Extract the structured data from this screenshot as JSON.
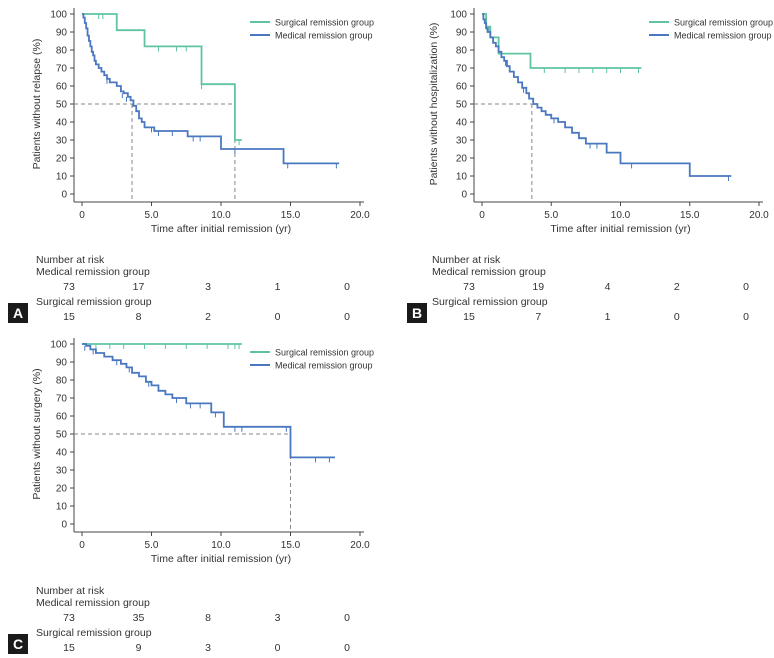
{
  "panels": [
    {
      "id": "A",
      "ylabel": "Patients without relapse (%)",
      "xlabel": "Time after initial remission (yr)",
      "risk_title": "Number at risk",
      "risk_rows": [
        {
          "name": "Medical remission group",
          "values": [
            "73",
            "17",
            "3",
            "1",
            "0"
          ]
        },
        {
          "name": "Surgical remission group",
          "values": [
            "15",
            "8",
            "2",
            "0",
            "0"
          ]
        }
      ]
    },
    {
      "id": "B",
      "ylabel": "Patients without hospitalization (%)",
      "xlabel": "Time after initial remission (yr)",
      "risk_title": "Number at risk",
      "risk_rows": [
        {
          "name": "Medical remission group",
          "values": [
            "73",
            "19",
            "4",
            "2",
            "0"
          ]
        },
        {
          "name": "Surgical remission group",
          "values": [
            "15",
            "7",
            "1",
            "0",
            "0"
          ]
        }
      ]
    },
    {
      "id": "C",
      "ylabel": "Patients without surgery (%)",
      "xlabel": "Time after initial remission (yr)",
      "risk_title": "Number at risk",
      "risk_rows": [
        {
          "name": "Medical remission group",
          "values": [
            "73",
            "35",
            "8",
            "3",
            "0"
          ]
        },
        {
          "name": "Surgical remission group",
          "values": [
            "15",
            "9",
            "3",
            "0",
            "0"
          ]
        }
      ]
    }
  ],
  "legend": {
    "surgical": "Surgical remission group",
    "medical": "Medical remission group"
  },
  "colors": {
    "surgical": "#5fc4a2",
    "medical": "#4a78c0",
    "reference": "#888888",
    "axis": "#444444"
  },
  "chart_data": [
    {
      "type": "line",
      "title": "",
      "xlabel": "Time after initial remission (yr)",
      "ylabel": "Patients without relapse (%)",
      "xlim": [
        0,
        20
      ],
      "ylim": [
        0,
        100
      ],
      "xticks": [
        "0",
        "5.0",
        "10.0",
        "15.0",
        "20.0"
      ],
      "yticks": [
        "0",
        "10",
        "20",
        "30",
        "40",
        "50",
        "60",
        "70",
        "80",
        "90",
        "100"
      ],
      "series": [
        {
          "name": "Surgical remission group",
          "color": "#5fc4a2",
          "steps": [
            [
              0,
              100
            ],
            [
              2.5,
              91
            ],
            [
              4.5,
              82
            ],
            [
              8.6,
              61
            ],
            [
              11.0,
              30
            ],
            [
              11.5,
              30
            ]
          ],
          "censor": [
            [
              1.2,
              100
            ],
            [
              1.5,
              100
            ],
            [
              5.5,
              82
            ],
            [
              6.8,
              82
            ],
            [
              7.5,
              82
            ],
            [
              8.6,
              61
            ],
            [
              11.3,
              30
            ]
          ]
        },
        {
          "name": "Medical remission group",
          "color": "#4a78c0",
          "steps": [
            [
              0,
              100
            ],
            [
              0.1,
              98
            ],
            [
              0.2,
              95
            ],
            [
              0.3,
              92
            ],
            [
              0.4,
              88
            ],
            [
              0.5,
              85
            ],
            [
              0.6,
              82
            ],
            [
              0.7,
              79
            ],
            [
              0.8,
              77
            ],
            [
              0.9,
              74
            ],
            [
              1.0,
              72
            ],
            [
              1.2,
              70
            ],
            [
              1.4,
              68
            ],
            [
              1.6,
              66
            ],
            [
              1.8,
              64
            ],
            [
              2.0,
              62
            ],
            [
              2.5,
              60
            ],
            [
              2.8,
              57
            ],
            [
              3.0,
              56
            ],
            [
              3.3,
              54
            ],
            [
              3.5,
              52
            ],
            [
              3.7,
              49
            ],
            [
              3.9,
              46
            ],
            [
              4.1,
              42
            ],
            [
              4.3,
              40
            ],
            [
              4.5,
              37
            ],
            [
              5.2,
              35
            ],
            [
              7.6,
              32
            ],
            [
              10.0,
              25
            ],
            [
              14.5,
              17
            ],
            [
              18.5,
              17
            ]
          ],
          "censor": [
            [
              1.8,
              64
            ],
            [
              2.9,
              56
            ],
            [
              3.2,
              54
            ],
            [
              5.0,
              37
            ],
            [
              5.5,
              35
            ],
            [
              6.5,
              35
            ],
            [
              8.0,
              32
            ],
            [
              8.5,
              32
            ],
            [
              11.0,
              25
            ],
            [
              14.8,
              17
            ],
            [
              18.3,
              17
            ]
          ]
        }
      ],
      "reference": {
        "y": 50,
        "x": [
          3.6,
          11.0
        ]
      },
      "legend_position": "top-right"
    },
    {
      "type": "line",
      "title": "",
      "xlabel": "Time after initial remission (yr)",
      "ylabel": "Patients without hospitalization (%)",
      "xlim": [
        0,
        20
      ],
      "ylim": [
        0,
        100
      ],
      "xticks": [
        "0",
        "5.0",
        "10.0",
        "15.0",
        "20.0"
      ],
      "yticks": [
        "0",
        "10",
        "20",
        "30",
        "40",
        "50",
        "60",
        "70",
        "80",
        "90",
        "100"
      ],
      "series": [
        {
          "name": "Surgical remission group",
          "color": "#5fc4a2",
          "steps": [
            [
              0,
              100
            ],
            [
              0.3,
              93
            ],
            [
              0.6,
              87
            ],
            [
              1.2,
              78
            ],
            [
              3.5,
              70
            ],
            [
              11.5,
              70
            ]
          ],
          "censor": [
            [
              0.5,
              93
            ],
            [
              4.5,
              70
            ],
            [
              6.0,
              70
            ],
            [
              7.0,
              70
            ],
            [
              8.0,
              70
            ],
            [
              9.0,
              70
            ],
            [
              10.0,
              70
            ],
            [
              11.3,
              70
            ]
          ]
        },
        {
          "name": "Medical remission group",
          "color": "#4a78c0",
          "steps": [
            [
              0,
              100
            ],
            [
              0.1,
              97
            ],
            [
              0.2,
              95
            ],
            [
              0.3,
              92
            ],
            [
              0.4,
              90
            ],
            [
              0.6,
              87
            ],
            [
              0.8,
              84
            ],
            [
              1.0,
              82
            ],
            [
              1.2,
              79
            ],
            [
              1.4,
              76
            ],
            [
              1.6,
              74
            ],
            [
              1.8,
              71
            ],
            [
              2.0,
              68
            ],
            [
              2.3,
              65
            ],
            [
              2.6,
              62
            ],
            [
              2.9,
              59
            ],
            [
              3.2,
              56
            ],
            [
              3.4,
              53
            ],
            [
              3.7,
              50
            ],
            [
              4.0,
              48
            ],
            [
              4.3,
              46
            ],
            [
              4.6,
              44
            ],
            [
              5.0,
              42
            ],
            [
              5.5,
              40
            ],
            [
              6.0,
              37
            ],
            [
              6.5,
              34
            ],
            [
              7.0,
              31
            ],
            [
              7.5,
              28
            ],
            [
              9.0,
              23
            ],
            [
              10.0,
              17
            ],
            [
              15.0,
              10
            ],
            [
              18.0,
              10
            ]
          ],
          "censor": [
            [
              1.7,
              74
            ],
            [
              3.0,
              59
            ],
            [
              5.2,
              42
            ],
            [
              7.8,
              28
            ],
            [
              8.3,
              28
            ],
            [
              10.8,
              17
            ],
            [
              17.8,
              10
            ]
          ]
        }
      ],
      "reference": {
        "y": 50,
        "x": [
          3.6
        ]
      },
      "legend_position": "top-right"
    },
    {
      "type": "line",
      "title": "",
      "xlabel": "Time after initial remission (yr)",
      "ylabel": "Patients without surgery (%)",
      "xlim": [
        0,
        20
      ],
      "ylim": [
        0,
        100
      ],
      "xticks": [
        "0",
        "5.0",
        "10.0",
        "15.0",
        "20.0"
      ],
      "yticks": [
        "0",
        "10",
        "20",
        "30",
        "40",
        "50",
        "60",
        "70",
        "80",
        "90",
        "100"
      ],
      "series": [
        {
          "name": "Surgical remission group",
          "color": "#5fc4a2",
          "steps": [
            [
              0,
              100
            ],
            [
              11.5,
              100
            ]
          ],
          "censor": [
            [
              0.6,
              100
            ],
            [
              1.0,
              100
            ],
            [
              2.0,
              100
            ],
            [
              3.0,
              100
            ],
            [
              4.5,
              100
            ],
            [
              6.0,
              100
            ],
            [
              7.5,
              100
            ],
            [
              9.0,
              100
            ],
            [
              10.5,
              100
            ],
            [
              11.0,
              100
            ],
            [
              11.3,
              100
            ]
          ]
        },
        {
          "name": "Medical remission group",
          "color": "#4a78c0",
          "steps": [
            [
              0,
              100
            ],
            [
              0.3,
              99
            ],
            [
              0.6,
              97
            ],
            [
              1.0,
              95
            ],
            [
              1.6,
              93
            ],
            [
              2.2,
              91
            ],
            [
              2.8,
              89
            ],
            [
              3.2,
              87
            ],
            [
              3.6,
              84
            ],
            [
              4.1,
              82
            ],
            [
              4.6,
              79
            ],
            [
              5.0,
              77
            ],
            [
              5.5,
              74
            ],
            [
              6.0,
              72
            ],
            [
              6.5,
              70
            ],
            [
              7.5,
              67
            ],
            [
              9.3,
              62
            ],
            [
              10.2,
              54
            ],
            [
              15.0,
              37
            ],
            [
              18.2,
              37
            ]
          ],
          "censor": [
            [
              0.2,
              99
            ],
            [
              0.8,
              97
            ],
            [
              2.5,
              91
            ],
            [
              3.4,
              87
            ],
            [
              4.8,
              79
            ],
            [
              6.8,
              70
            ],
            [
              7.8,
              67
            ],
            [
              8.5,
              67
            ],
            [
              9.6,
              62
            ],
            [
              11.0,
              54
            ],
            [
              11.5,
              54
            ],
            [
              14.7,
              54
            ],
            [
              16.8,
              37
            ],
            [
              17.8,
              37
            ]
          ]
        }
      ],
      "reference": {
        "y": 50,
        "x": [
          15.0
        ]
      },
      "legend_position": "top-right"
    }
  ]
}
